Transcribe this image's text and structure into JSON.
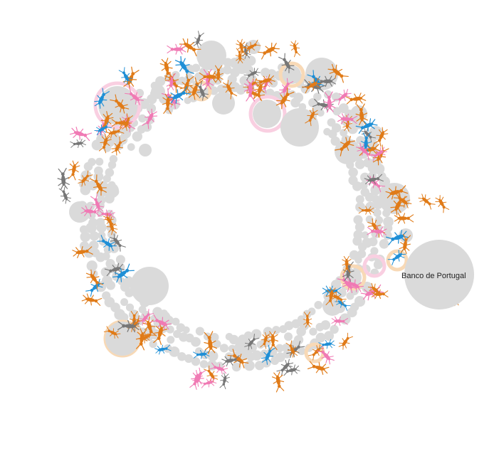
{
  "diagram": {
    "label": "Banco de Portugal",
    "colors": {
      "node": "#dadada",
      "orange": "#e07b18",
      "pink": "#f07ab4",
      "blue": "#1f8fd6",
      "gray": "#777777",
      "halo_pink": "#f9cfe1",
      "halo_orange": "#f8d9b6"
    }
  }
}
